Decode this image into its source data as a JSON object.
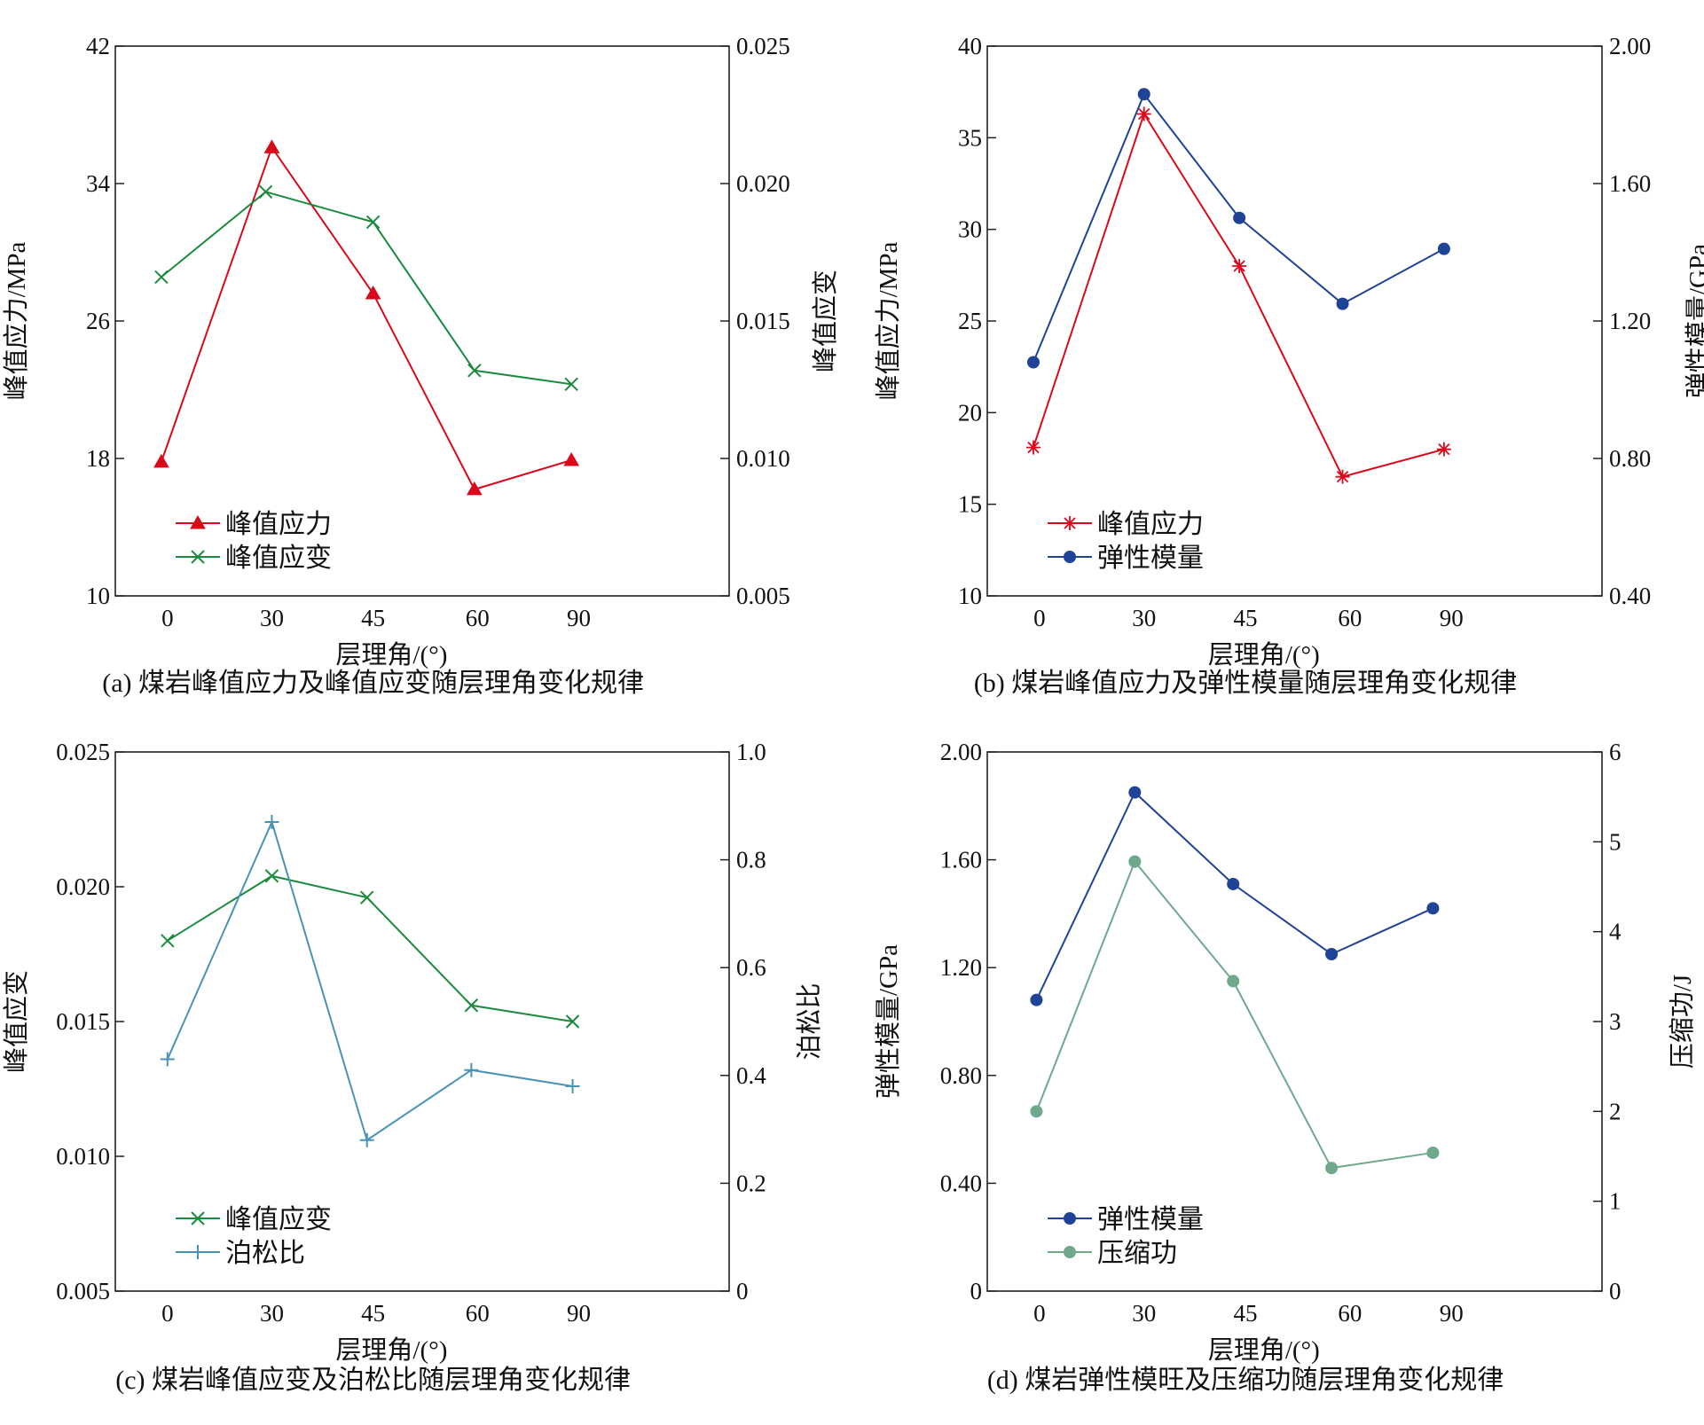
{
  "figure": {
    "x_tick_labels": [
      "0",
      "30",
      "45",
      "60",
      "90"
    ]
  },
  "chart_data": [
    {
      "id": "a",
      "type": "line",
      "caption": "(a) 煤岩峰值应力及峰值应变随层理角变化规律",
      "xlabel": "层理角/(°)",
      "categories": [
        "0",
        "30",
        "45",
        "60",
        "90"
      ],
      "ylabel_left": "峰值应力/MPa",
      "ylim_left": [
        10,
        42
      ],
      "yticks_left": [
        "10",
        "18",
        "26",
        "34",
        "42"
      ],
      "ylabel_right": "峰值应变",
      "ylim_right": [
        0.005,
        0.025
      ],
      "yticks_right": [
        "0.005",
        "0.010",
        "0.015",
        "0.020",
        "0.025"
      ],
      "legend_position": "bottom-left",
      "series": [
        {
          "name": "峰值应力",
          "axis": "left",
          "marker": "triangle",
          "color": "#d9091b",
          "values": [
            17.8,
            36.1,
            27.6,
            16.2,
            17.9
          ]
        },
        {
          "name": "峰值应变",
          "axis": "right",
          "marker": "x",
          "color": "#1a8a3c",
          "values": [
            0.0166,
            0.0197,
            0.0186,
            0.0132,
            0.0127
          ]
        }
      ]
    },
    {
      "id": "b",
      "type": "line",
      "caption": "(b) 煤岩峰值应力及弹性模量随层理角变化规律",
      "xlabel": "层理角/(°)",
      "categories": [
        "0",
        "30",
        "45",
        "60",
        "90"
      ],
      "ylabel_left": "峰值应力/MPa",
      "ylim_left": [
        10,
        40
      ],
      "yticks_left": [
        "10",
        "15",
        "20",
        "25",
        "30",
        "35",
        "40"
      ],
      "ylabel_right": "弹性模量/GPa",
      "ylim_right": [
        0.4,
        2.0
      ],
      "yticks_right": [
        "0.40",
        "0.80",
        "1.20",
        "1.60",
        "2.00"
      ],
      "legend_position": "bottom-left",
      "series": [
        {
          "name": "峰值应力",
          "axis": "left",
          "marker": "star",
          "color": "#d9091b",
          "values": [
            18.1,
            36.3,
            28.0,
            16.5,
            18.0
          ]
        },
        {
          "name": "弹性模量",
          "axis": "right",
          "marker": "circle",
          "color": "#1f4397",
          "values": [
            1.08,
            1.86,
            1.5,
            1.25,
            1.41
          ]
        }
      ]
    },
    {
      "id": "c",
      "type": "line",
      "caption": "(c) 煤岩峰值应变及泊松比随层理角变化规律",
      "xlabel": "层理角/(°)",
      "categories": [
        "0",
        "30",
        "45",
        "60",
        "90"
      ],
      "ylabel_left": "峰值应变",
      "ylim_left": [
        0.005,
        0.025
      ],
      "yticks_left": [
        "0.005",
        "0.010",
        "0.015",
        "0.020",
        "0.025"
      ],
      "ylabel_right": "泊松比",
      "ylim_right": [
        0,
        1.0
      ],
      "yticks_right": [
        "0",
        "0.2",
        "0.4",
        "0.6",
        "0.8",
        "1.0"
      ],
      "legend_position": "bottom-left",
      "series": [
        {
          "name": "峰值应变",
          "axis": "left",
          "marker": "x",
          "color": "#1a8a3c",
          "values": [
            0.018,
            0.0204,
            0.0196,
            0.0156,
            0.015
          ]
        },
        {
          "name": "泊松比",
          "axis": "right",
          "marker": "plus",
          "color": "#4b93b5",
          "values": [
            0.43,
            0.87,
            0.28,
            0.41,
            0.38
          ]
        }
      ]
    },
    {
      "id": "d",
      "type": "line",
      "caption": "(d) 煤岩弹性模旺及压缩功随层理角变化规律",
      "xlabel": "层理角/(°)",
      "categories": [
        "0",
        "30",
        "45",
        "60",
        "90"
      ],
      "ylabel_left": "弹性模量/GPa",
      "ylim_left": [
        0,
        2.0
      ],
      "yticks_left": [
        "0",
        "0.40",
        "0.80",
        "1.20",
        "1.60",
        "2.00"
      ],
      "ylabel_right": "压缩功/J",
      "ylim_right": [
        0,
        6
      ],
      "yticks_right": [
        "0",
        "1",
        "2",
        "3",
        "4",
        "5",
        "6"
      ],
      "legend_position": "bottom-left",
      "series": [
        {
          "name": "弹性模量",
          "axis": "left",
          "marker": "circle",
          "color": "#1f4397",
          "values": [
            1.08,
            1.85,
            1.51,
            1.25,
            1.42
          ]
        },
        {
          "name": "压缩功",
          "axis": "right",
          "marker": "circle",
          "color": "#6fa88a",
          "values": [
            2.0,
            4.78,
            3.45,
            1.37,
            1.54
          ]
        }
      ]
    }
  ]
}
